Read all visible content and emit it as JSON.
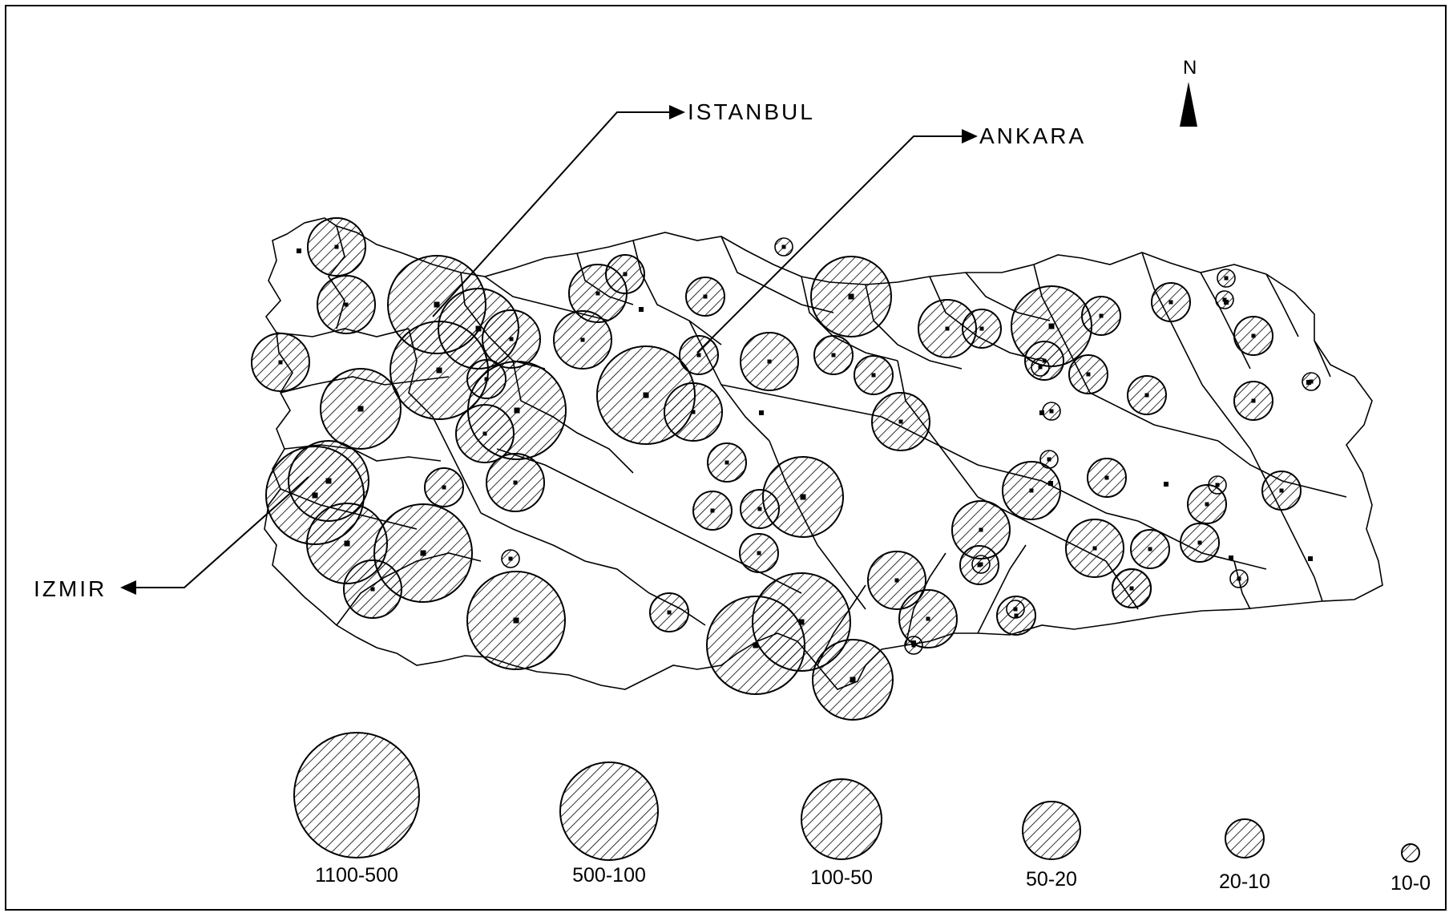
{
  "map": {
    "cities": [
      {
        "id": "istanbul",
        "label": "ISTANBUL"
      },
      {
        "id": "ankara",
        "label": "ANKARA"
      },
      {
        "id": "izmir",
        "label": "IZMIR"
      }
    ],
    "north_label": "N",
    "hatch_color": "#000000",
    "background": "#ffffff",
    "legend": [
      {
        "class": "1100-500",
        "label": "1100-500"
      },
      {
        "class": "500-100",
        "label": "500-100"
      },
      {
        "class": "100-50",
        "label": "100-50"
      },
      {
        "class": "50-20",
        "label": "50-20"
      },
      {
        "class": "20-10",
        "label": "20-10"
      },
      {
        "class": "10-0",
        "label": "10-0"
      }
    ]
  }
}
